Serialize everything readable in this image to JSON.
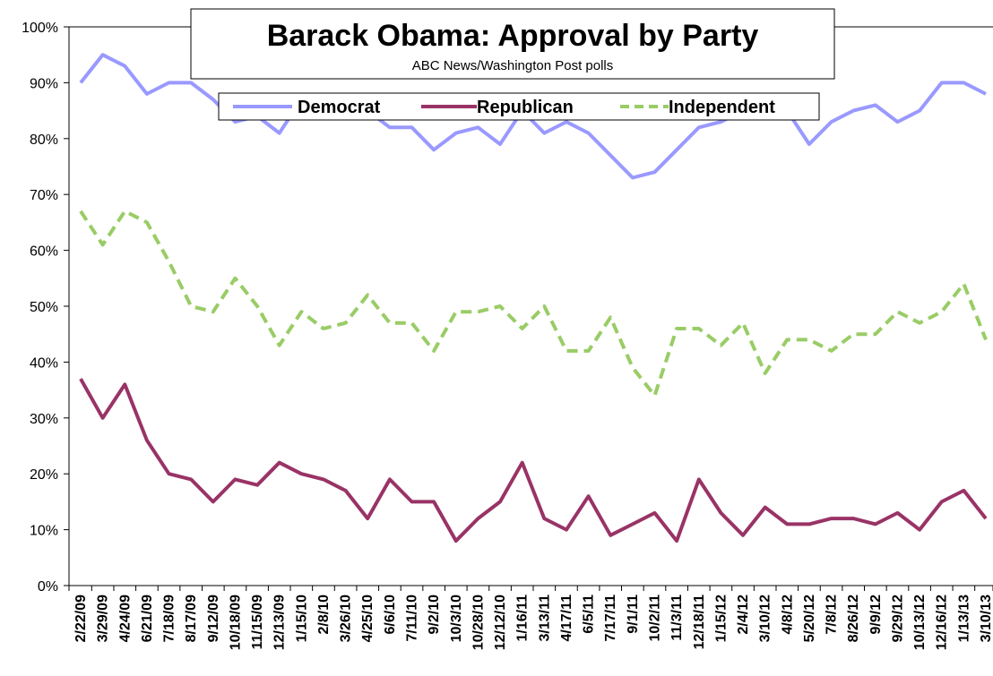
{
  "chart_data": {
    "type": "line",
    "title": "Barack Obama: Approval by Party",
    "subtitle": "ABC News/Washington Post polls",
    "ylim": [
      0,
      100
    ],
    "yticks": [
      "0%",
      "10%",
      "20%",
      "30%",
      "40%",
      "50%",
      "60%",
      "70%",
      "80%",
      "90%",
      "100%"
    ],
    "grid": false,
    "legend_position": "top",
    "categories": [
      "2/22/09",
      "3/29/09",
      "4/24/09",
      "6/21/09",
      "7/18/09",
      "8/17/09",
      "9/12/09",
      "10/18/09",
      "11/15/09",
      "12/13/09",
      "1/15/10",
      "2/8/10",
      "3/26/10",
      "4/25/10",
      "6/6/10",
      "7/11/10",
      "9/2/10",
      "10/3/10",
      "10/28/10",
      "12/12/10",
      "1/16/11",
      "3/13/11",
      "4/17/11",
      "6/5/11",
      "7/17/11",
      "9/1/11",
      "10/2/11",
      "11/3/11",
      "12/18/11",
      "1/15/12",
      "2/4/12",
      "3/10/12",
      "4/8/12",
      "5/20/12",
      "7/8/12",
      "8/26/12",
      "9/9/12",
      "9/29/12",
      "10/13/12",
      "12/16/12",
      "1/13/13",
      "3/10/13"
    ],
    "series": [
      {
        "name": "Democrat",
        "color": "#9999ff",
        "dash": false,
        "values": [
          90,
          95,
          93,
          88,
          90,
          90,
          87,
          83,
          84,
          81,
          87,
          86,
          87,
          85,
          82,
          82,
          78,
          81,
          82,
          79,
          85,
          81,
          83,
          81,
          77,
          73,
          74,
          78,
          82,
          83,
          85,
          86,
          85,
          79,
          83,
          85,
          86,
          83,
          85,
          90,
          90,
          88
        ]
      },
      {
        "name": "Republican",
        "color": "#993366",
        "dash": false,
        "values": [
          37,
          30,
          36,
          26,
          20,
          19,
          15,
          19,
          18,
          22,
          20,
          19,
          17,
          12,
          19,
          15,
          15,
          8,
          12,
          15,
          22,
          12,
          10,
          16,
          9,
          11,
          13,
          8,
          19,
          13,
          9,
          14,
          11,
          11,
          12,
          12,
          11,
          13,
          10,
          15,
          17,
          12
        ]
      },
      {
        "name": "Independent",
        "color": "#99cc66",
        "dash": true,
        "values": [
          67,
          61,
          67,
          65,
          58,
          50,
          49,
          55,
          50,
          43,
          49,
          46,
          47,
          52,
          47,
          47,
          42,
          49,
          49,
          50,
          46,
          50,
          42,
          42,
          48,
          39,
          34,
          46,
          46,
          43,
          47,
          38,
          44,
          44,
          42,
          45,
          45,
          49,
          47,
          49,
          54,
          44
        ]
      }
    ]
  }
}
